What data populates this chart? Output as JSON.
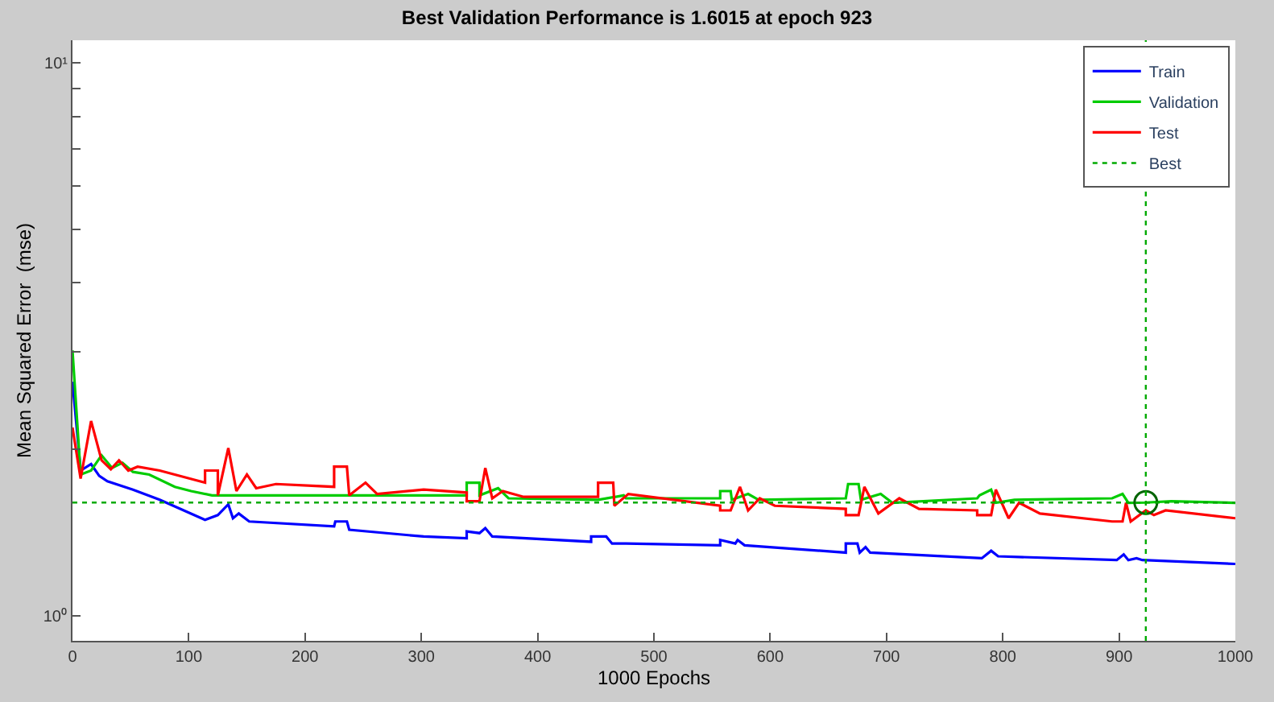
{
  "chart_data": {
    "type": "line",
    "title": "Best Validation Performance is 1.6015 at epoch 923",
    "xlabel": "1000 Epochs",
    "ylabel": "Mean Squared Error  (mse)",
    "log": "y",
    "xlim": [
      0,
      1000
    ],
    "ylim": [
      0.9,
      11
    ],
    "xticks": [
      0,
      100,
      200,
      300,
      400,
      500,
      600,
      700,
      800,
      900,
      1000
    ],
    "yticks": [
      {
        "value": 1,
        "label": "10⁰"
      },
      {
        "value": 2,
        "label": null
      },
      {
        "value": 3,
        "label": null
      },
      {
        "value": 4,
        "label": null
      },
      {
        "value": 5,
        "label": null
      },
      {
        "value": 6,
        "label": null
      },
      {
        "value": 7,
        "label": null
      },
      {
        "value": 8,
        "label": null
      },
      {
        "value": 9,
        "label": null
      },
      {
        "value": 10,
        "label": "10¹"
      }
    ],
    "legend": "top right",
    "series": [
      {
        "name": "Train",
        "color": "#0000ff",
        "x": [
          0,
          7,
          16,
          23,
          30,
          52,
          75,
          114,
          125,
          134,
          138,
          143,
          152,
          225,
          226,
          236,
          238,
          302,
          339,
          339,
          350,
          355,
          361,
          446,
          446,
          459,
          464,
          476,
          557,
          557,
          570,
          572,
          578,
          665,
          665,
          675,
          677,
          682,
          686,
          782,
          790,
          796,
          898,
          904,
          908,
          915,
          920,
          1000
        ],
        "values": [
          2.65,
          1.83,
          1.88,
          1.79,
          1.75,
          1.69,
          1.62,
          1.49,
          1.52,
          1.59,
          1.5,
          1.53,
          1.48,
          1.45,
          1.48,
          1.48,
          1.43,
          1.39,
          1.38,
          1.42,
          1.41,
          1.44,
          1.39,
          1.36,
          1.39,
          1.39,
          1.35,
          1.35,
          1.34,
          1.37,
          1.35,
          1.37,
          1.34,
          1.3,
          1.35,
          1.35,
          1.3,
          1.33,
          1.3,
          1.27,
          1.31,
          1.28,
          1.26,
          1.29,
          1.26,
          1.27,
          1.26,
          1.24
        ]
      },
      {
        "name": "Validation",
        "color": "#00cc00",
        "x": [
          0,
          7,
          16,
          25,
          34,
          43,
          52,
          66,
          88,
          102,
          120,
          225,
          339,
          339,
          350,
          350,
          366,
          375,
          452,
          474,
          476,
          557,
          557,
          566,
          567,
          581,
          590,
          665,
          667,
          676,
          678,
          695,
          705,
          778,
          780,
          790,
          794,
          810,
          894,
          903,
          908,
          923,
          945,
          1000
        ],
        "values": [
          3.02,
          1.8,
          1.83,
          1.95,
          1.85,
          1.89,
          1.82,
          1.8,
          1.71,
          1.68,
          1.65,
          1.65,
          1.65,
          1.74,
          1.74,
          1.65,
          1.7,
          1.63,
          1.62,
          1.65,
          1.63,
          1.63,
          1.68,
          1.68,
          1.62,
          1.66,
          1.62,
          1.63,
          1.73,
          1.73,
          1.62,
          1.66,
          1.6,
          1.63,
          1.65,
          1.69,
          1.6,
          1.62,
          1.63,
          1.66,
          1.6,
          1.6015,
          1.61,
          1.6
        ]
      },
      {
        "name": "Test",
        "color": "#ff0000",
        "x": [
          0,
          7,
          16,
          25,
          33,
          40,
          48,
          56,
          75,
          114,
          114,
          125,
          125,
          134,
          141,
          150,
          158,
          175,
          225,
          225,
          236,
          238,
          252,
          262,
          302,
          339,
          339,
          350,
          355,
          361,
          370,
          388,
          452,
          452,
          465,
          466,
          478,
          557,
          557,
          566,
          574,
          581,
          591,
          604,
          665,
          665,
          676,
          681,
          693,
          711,
          728,
          778,
          778,
          790,
          794,
          805,
          814,
          832,
          894,
          894,
          903,
          906,
          910,
          923,
          930,
          940,
          1000
        ],
        "values": [
          2.19,
          1.77,
          2.25,
          1.91,
          1.84,
          1.91,
          1.83,
          1.86,
          1.83,
          1.74,
          1.83,
          1.83,
          1.65,
          2.01,
          1.68,
          1.8,
          1.7,
          1.73,
          1.71,
          1.86,
          1.86,
          1.65,
          1.74,
          1.66,
          1.69,
          1.67,
          1.61,
          1.61,
          1.85,
          1.63,
          1.68,
          1.64,
          1.64,
          1.74,
          1.74,
          1.58,
          1.66,
          1.58,
          1.55,
          1.55,
          1.71,
          1.55,
          1.63,
          1.58,
          1.56,
          1.52,
          1.52,
          1.71,
          1.53,
          1.63,
          1.56,
          1.55,
          1.52,
          1.52,
          1.69,
          1.5,
          1.6,
          1.53,
          1.48,
          1.48,
          1.48,
          1.6,
          1.48,
          1.55,
          1.52,
          1.55,
          1.5
        ]
      },
      {
        "type": "scatter",
        "color": "#006400",
        "marker": "circle",
        "x": [
          923
        ],
        "values": [
          1.6015
        ]
      }
    ],
    "ref_lines": [
      {
        "axis": "x",
        "value": 923,
        "label": "Best",
        "color": "#00aa00",
        "line_style": "dotted"
      },
      {
        "axis": "y",
        "value": 1.6015,
        "color": "#00aa00",
        "line_style": "dotted"
      }
    ]
  }
}
